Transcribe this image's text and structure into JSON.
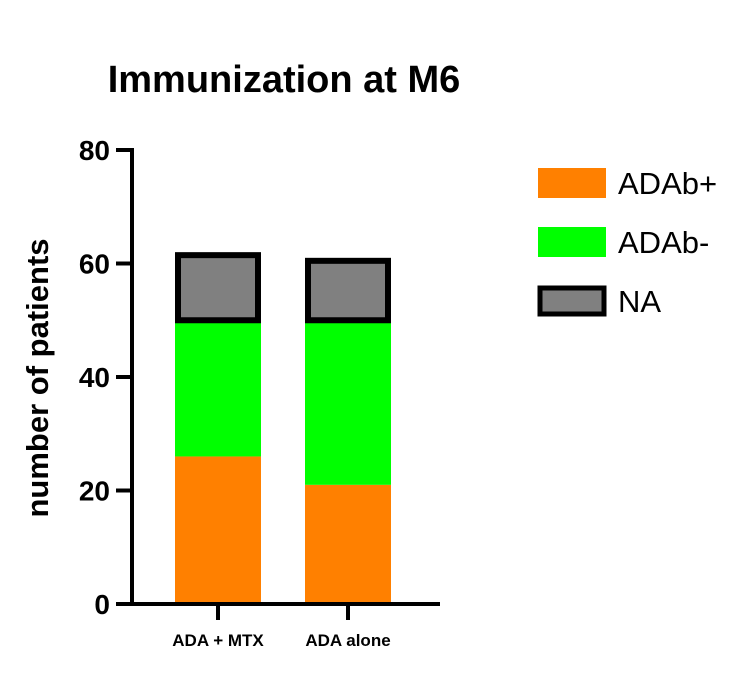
{
  "chart_data": {
    "type": "bar",
    "stacked": true,
    "title": "Immunization at M6",
    "xlabel": "",
    "ylabel": "number of patients",
    "ylim": [
      0,
      80
    ],
    "yticks": [
      0,
      20,
      40,
      60,
      80
    ],
    "categories": [
      "ADA + MTX",
      "ADA alone"
    ],
    "series": [
      {
        "name": "ADAb+",
        "values": [
          26,
          21
        ],
        "color": "#ff8000"
      },
      {
        "name": "ADAb-",
        "values": [
          24,
          29
        ],
        "color": "#00ff00"
      },
      {
        "name": "NA",
        "values": [
          12,
          11
        ],
        "color": "#808080"
      }
    ],
    "grid": false,
    "legend_position": "right"
  }
}
